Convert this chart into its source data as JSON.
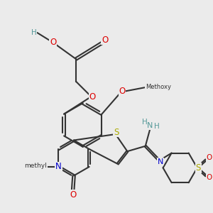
{
  "bg": "#ebebeb",
  "bc": "#333333",
  "lw": 1.5,
  "dbo": 0.06,
  "Oc": "#dd0000",
  "Nc": "#0000cc",
  "Sc": "#aaaa00",
  "Hc": "#559999",
  "Cc": "#333333",
  "fs": 8.5,
  "figsize": [
    3.0,
    3.0
  ],
  "dpi": 100,
  "xlim": [
    0.5,
    10.5
  ],
  "ylim": [
    1.0,
    10.5
  ]
}
